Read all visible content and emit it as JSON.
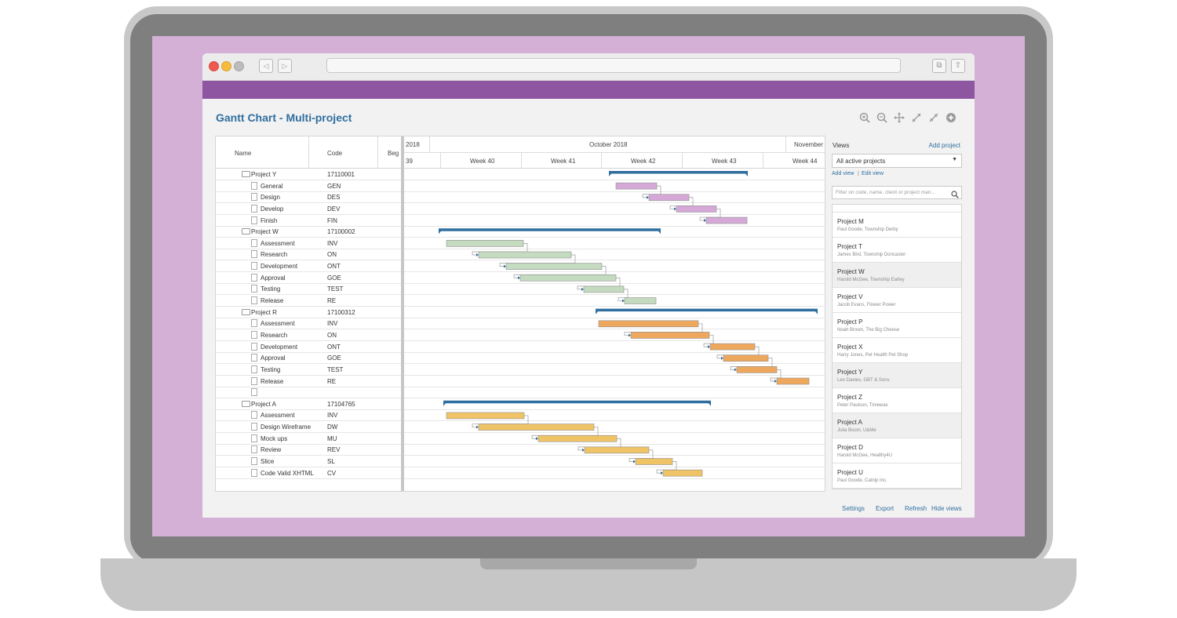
{
  "app": {
    "title": "Gantt Chart - Multi-project",
    "colors": {
      "accent": "#2f6e9e",
      "purple_bar": "#8e55a0",
      "bar_y": "#d5a8d8",
      "bar_w": "#c4dbc0",
      "bar_r": "#eea85e",
      "bar_a": "#f0c367"
    }
  },
  "toolbar": {
    "icons": [
      "zoom-in-icon",
      "zoom-out-icon",
      "move-icon",
      "expand-icon",
      "collapse-icon",
      "add-icon"
    ]
  },
  "grid": {
    "columns": {
      "name": "Name",
      "code": "Code",
      "begin": "Beg"
    },
    "timeline": {
      "top": [
        "2018",
        "October 2018",
        "November"
      ],
      "weeks": [
        "39",
        "Week 40",
        "Week 41",
        "Week 42",
        "Week 43",
        "Week 44"
      ]
    },
    "rows": [
      {
        "name": "Project Y",
        "code": "17110001",
        "kind": "project"
      },
      {
        "name": "General",
        "code": "GEN",
        "kind": "task"
      },
      {
        "name": "Design",
        "code": "DES",
        "kind": "task"
      },
      {
        "name": "Develop",
        "code": "DEV",
        "kind": "task"
      },
      {
        "name": "Finish",
        "code": "FIN",
        "kind": "task"
      },
      {
        "name": "Project W",
        "code": "17100002",
        "kind": "project"
      },
      {
        "name": "Assessment",
        "code": "INV",
        "kind": "task"
      },
      {
        "name": "Research",
        "code": "ON",
        "kind": "task"
      },
      {
        "name": "Development",
        "code": "ONT",
        "kind": "task"
      },
      {
        "name": "Approval",
        "code": "GOE",
        "kind": "task"
      },
      {
        "name": "Testing",
        "code": "TEST",
        "kind": "task"
      },
      {
        "name": "Release",
        "code": "RE",
        "kind": "task"
      },
      {
        "name": "Project R",
        "code": "17100312",
        "kind": "project"
      },
      {
        "name": "Assessment",
        "code": "INV",
        "kind": "task"
      },
      {
        "name": "Research",
        "code": "ON",
        "kind": "task"
      },
      {
        "name": "Development",
        "code": "ONT",
        "kind": "task"
      },
      {
        "name": "Approval",
        "code": "GOE",
        "kind": "task"
      },
      {
        "name": "Testing",
        "code": "TEST",
        "kind": "task"
      },
      {
        "name": "Release",
        "code": "RE",
        "kind": "task"
      },
      {
        "name": "",
        "code": "",
        "kind": "task"
      },
      {
        "name": "Project A",
        "code": "17104765",
        "kind": "project"
      },
      {
        "name": "Assessment",
        "code": "INV",
        "kind": "task"
      },
      {
        "name": "Design Wireframe",
        "code": "DW",
        "kind": "task"
      },
      {
        "name": "Mock ups",
        "code": "MU",
        "kind": "task"
      },
      {
        "name": "Review",
        "code": "REV",
        "kind": "task"
      },
      {
        "name": "Slice",
        "code": "SL",
        "kind": "task"
      },
      {
        "name": "Code Valid XHTML",
        "code": "CV",
        "kind": "task"
      }
    ]
  },
  "sidebar": {
    "views_label": "Views",
    "add_project": "Add project",
    "select_value": "All active projects",
    "add_view": "Add view",
    "edit_view": "Edit view",
    "separator": "|",
    "filter_placeholder": "Filter on code, name, client or project man...",
    "projects": [
      {
        "name": "Project M",
        "sub": "Paul Goode, Township Derby",
        "selected": false
      },
      {
        "name": "Project T",
        "sub": "James Bird, Township Doncaster",
        "selected": false
      },
      {
        "name": "Project W",
        "sub": "Harold McGee, Township Earley",
        "selected": true
      },
      {
        "name": "Project V",
        "sub": "Jacob Evans, Flower Power",
        "selected": false
      },
      {
        "name": "Project P",
        "sub": "Noah Brown, The Big Cheese",
        "selected": false
      },
      {
        "name": "Project X",
        "sub": "Harry Jones, Pet Health Pet Shop",
        "selected": false
      },
      {
        "name": "Project Y",
        "sub": "Leo Davies, GBT & Sons",
        "selected": true
      },
      {
        "name": "Project Z",
        "sub": "Peter Paulson, Timewax",
        "selected": false
      },
      {
        "name": "Project A",
        "sub": "Julia Boom, U&Me",
        "selected": true
      },
      {
        "name": "Project D",
        "sub": "Harold McGee, Healthy4U",
        "selected": false
      },
      {
        "name": "Project U",
        "sub": "Paul Goode, Catnip Inc.",
        "selected": false
      }
    ]
  },
  "footer": {
    "settings": "Settings",
    "export": "Export",
    "refresh": "Refresh",
    "hide_views": "Hide views"
  }
}
